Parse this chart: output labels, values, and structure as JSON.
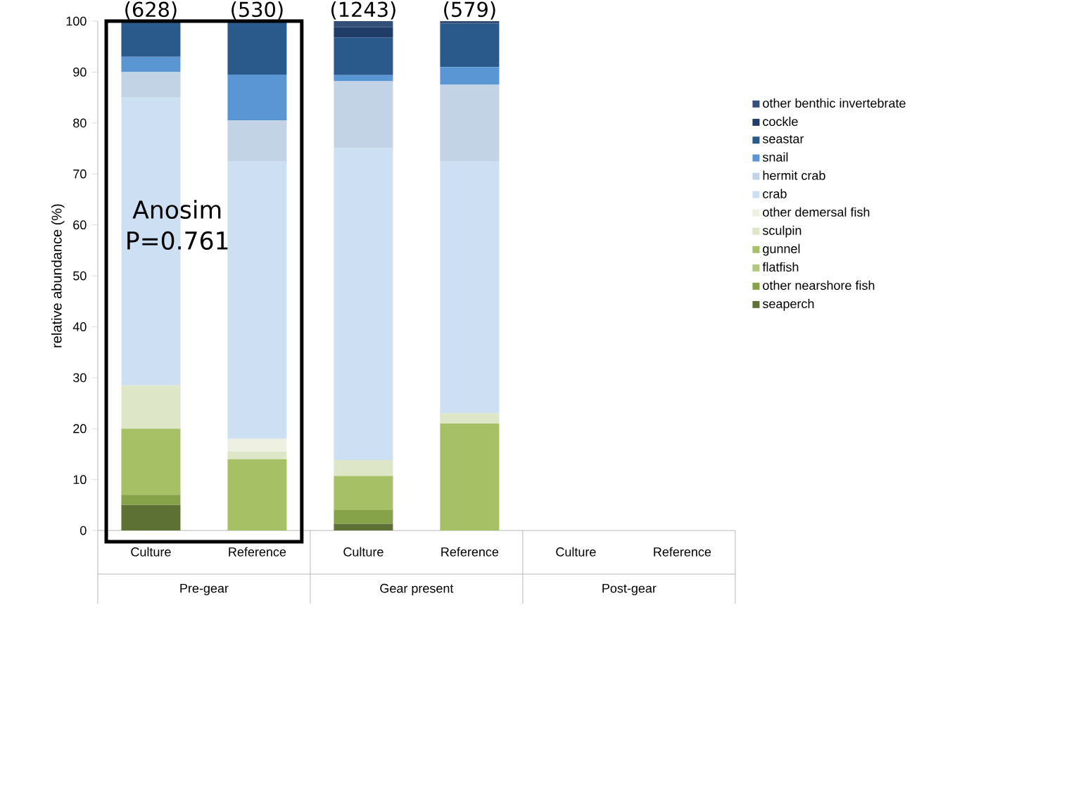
{
  "chart_data": {
    "type": "bar",
    "stacked": true,
    "ylabel": "relative abundance (%)",
    "categories": [
      "Culture",
      "Reference",
      "Culture",
      "Reference",
      "Culture",
      "Reference"
    ],
    "ylim": [
      0,
      100
    ],
    "yticks": [
      0,
      10,
      20,
      30,
      40,
      50,
      60,
      70,
      80,
      90,
      100
    ],
    "grid": false,
    "legend": "right",
    "annotations": [
      "(628)",
      "(530)",
      "(1243)",
      "(579)",
      "Anosim P=0.761",
      "Pre-gear",
      "Gear present",
      "Post-gear"
    ],
    "series": [
      {
        "name": "seaperch",
        "color": "#5c7133",
        "values": [
          5,
          0,
          1.3,
          0,
          0,
          0
        ]
      },
      {
        "name": "other nearshore fish",
        "color": "#86a34a",
        "values": [
          2,
          0,
          2.7,
          0,
          0,
          0
        ]
      },
      {
        "name": "flatfish",
        "color": "#b0c97a",
        "values": [
          0,
          0,
          0,
          0,
          0,
          0
        ]
      },
      {
        "name": "gunnel",
        "color": "#a6c065",
        "values": [
          13,
          14,
          6.7,
          21,
          0,
          0
        ]
      },
      {
        "name": "sculpin",
        "color": "#dde6c6",
        "values": [
          8.5,
          1.5,
          3.1,
          2,
          0,
          0
        ]
      },
      {
        "name": "other demersal fish",
        "color": "#eef0e2",
        "values": [
          0,
          2.5,
          0,
          0,
          0,
          0
        ]
      },
      {
        "name": "crab",
        "color": "#cddff2",
        "values": [
          56.5,
          54.5,
          61.3,
          49.5,
          0,
          0
        ]
      },
      {
        "name": "hermit crab",
        "color": "#c2d3e6",
        "values": [
          5,
          8,
          13.1,
          15,
          0,
          0
        ]
      },
      {
        "name": "snail",
        "color": "#5b96d4",
        "values": [
          3,
          9,
          1.2,
          3.5,
          0,
          0
        ]
      },
      {
        "name": "seastar",
        "color": "#2a5a8c",
        "values": [
          7,
          10.5,
          7.4,
          8.5,
          0,
          0
        ]
      },
      {
        "name": "cockle",
        "color": "#1f3d66",
        "values": [
          0,
          0,
          2,
          0,
          0,
          0
        ]
      },
      {
        "name": "other benthic invertebrate",
        "color": "#34507a",
        "values": [
          0,
          0,
          1.2,
          0.5,
          0,
          0
        ]
      }
    ]
  }
}
